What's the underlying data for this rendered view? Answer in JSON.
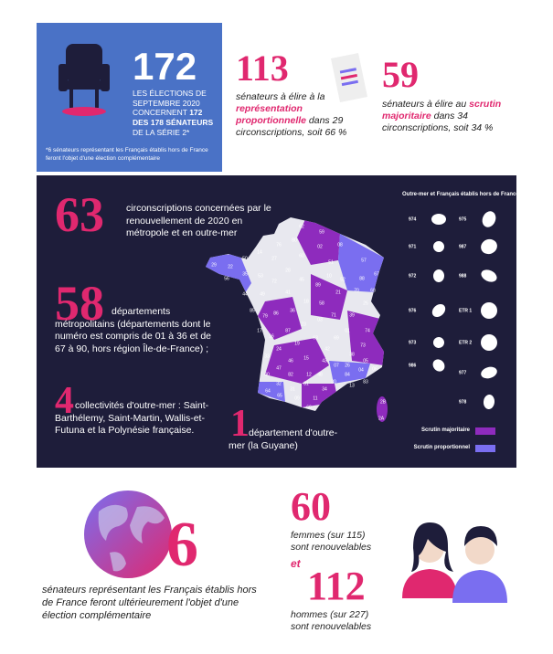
{
  "summary": {
    "number": 172,
    "text_1": "LES ÉLECTIONS DE SEPTEMBRE 2020 CONCERNENT ",
    "text_bold": "172 DES 178 SÉNATEURS",
    "text_2": " DE LA SÉRIE 2*",
    "footnote": "*6 sénateurs représentant les Français établis hors de France feront l'objet d'une élection complémentaire"
  },
  "proportional": {
    "number": 113,
    "text_1": "sénateurs à élire à la ",
    "highlight": "représentation proportionnelle",
    "text_2": " dans 29 circonscriptions, soit 66 %"
  },
  "majority": {
    "number": 59,
    "text_1": "sénateurs à élire au ",
    "highlight": "scrutin majoritaire",
    "text_2": " dans 34 circonscriptions, soit 34 %"
  },
  "constituencies": {
    "number": 63,
    "text": "circonscriptions concernées par le renouvellement de 2020 en métropole et en outre-mer"
  },
  "departments": {
    "number": 58,
    "text": "départements métropolitains (départements dont le numéro est compris de 01 à 36 et de 67 à 90, hors région Île-de-France) ;"
  },
  "collectivities": {
    "number": 4,
    "text": "collectivités d'outre-mer : Saint-Barthélemy, Saint-Martin, Wallis-et-Futuna et la Polynésie française."
  },
  "overseas_department": {
    "number": 1,
    "text": "département d'outre-mer (la Guyane)"
  },
  "map": {
    "labels": [
      "62",
      "59",
      "80",
      "02",
      "08",
      "76",
      "60",
      "51",
      "57",
      "67",
      "27",
      "14",
      "50",
      "29",
      "22",
      "56",
      "35",
      "53",
      "72",
      "28",
      "45",
      "10",
      "52",
      "88",
      "68",
      "44",
      "49",
      "41",
      "18",
      "89",
      "21",
      "70",
      "25",
      "85",
      "79",
      "86",
      "36",
      "58",
      "71",
      "39",
      "17",
      "16",
      "87",
      "23",
      "03",
      "01",
      "74",
      "33",
      "24",
      "19",
      "63",
      "69",
      "42",
      "73",
      "38",
      "15",
      "43",
      "46",
      "40",
      "47",
      "82",
      "12",
      "48",
      "07",
      "26",
      "05",
      "32",
      "81",
      "30",
      "84",
      "04",
      "06",
      "64",
      "31",
      "34",
      "13",
      "83",
      "65",
      "09",
      "11",
      "66",
      "2B",
      "2A"
    ]
  },
  "overseas": {
    "title": "Outre-mer et Français établis hors de France",
    "codes": [
      "974",
      "975",
      "971",
      "987",
      "972",
      "988",
      "976",
      "ETR 1",
      "973",
      "ETR 2",
      "986",
      "977",
      "978"
    ]
  },
  "legend": {
    "majority": "Scrutin majoritaire",
    "proportional": "Scrutin proportionnel"
  },
  "abroad": {
    "number": 6,
    "text": "sénateurs représentant les Français établis hors de France feront ultérieurement l'objet d'une élection complémentaire"
  },
  "women": {
    "number": 60,
    "text": "femmes (sur 115) sont renouvelables"
  },
  "joiner": "et",
  "men": {
    "number": 112,
    "text": "hommes (sur 227) sont renouvelables"
  }
}
